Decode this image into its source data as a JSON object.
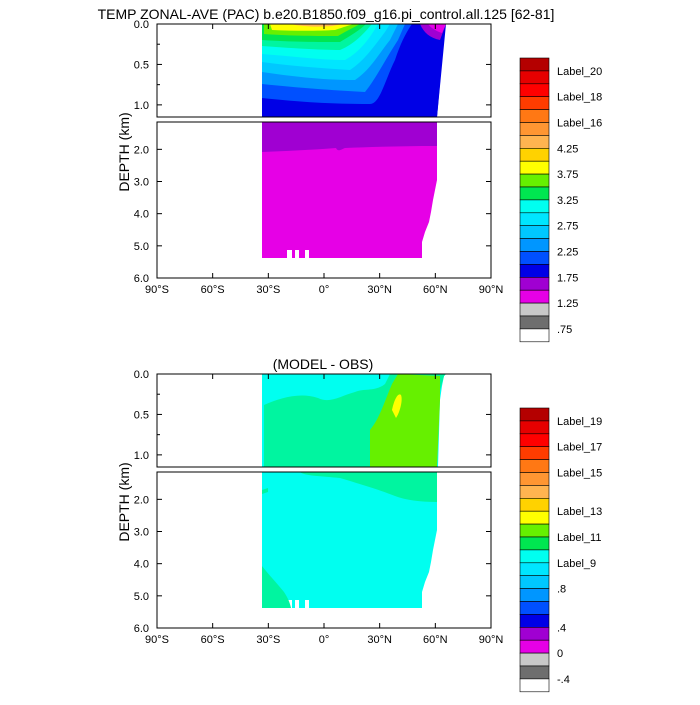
{
  "colors": {
    "palette": [
      "#ffffff",
      "#6e6e6e",
      "#c8c8c8",
      "#e600e6",
      "#a000d2",
      "#0000e6",
      "#0050ff",
      "#0096ff",
      "#00c8ff",
      "#00e6ff",
      "#00fff0",
      "#00f5a0",
      "#00e650",
      "#66f000",
      "#ffff00",
      "#ffd200",
      "#ffb450",
      "#ff9632",
      "#ff7814",
      "#ff3c00",
      "#ff0000",
      "#e60000",
      "#b40000"
    ],
    "frame": "#000000"
  },
  "chart_data": [
    {
      "type": "contour",
      "title": "TEMP ZONAL-AVE (PAC) b.e20.B1850.f09_g16.pi_control.all.125 [62-81]",
      "xlabel": "",
      "ylabel": "DEPTH (km)",
      "x_ticks": [
        "90°S",
        "60°S",
        "30°S",
        "0°",
        "30°N",
        "60°N",
        "90°N"
      ],
      "x_values": [
        -90,
        -60,
        -30,
        0,
        30,
        60,
        90
      ],
      "xlim": [
        -90,
        90
      ],
      "upper_depth_ticks": [
        "0.0",
        "0.5",
        "1.0"
      ],
      "lower_depth_ticks": [
        "2.0",
        "3.0",
        "4.0",
        "5.0",
        "6.0"
      ],
      "upper_ylim_km": [
        0,
        1.15
      ],
      "lower_ylim_km": [
        1.15,
        6.0
      ],
      "colorbar_labels": [
        "Label_20",
        "Label_18",
        "Label_16",
        "4.25",
        "3.75",
        "3.25",
        "2.75",
        "2.25",
        "1.75",
        "1.25",
        ".75"
      ],
      "colorbar_n": 22
    },
    {
      "type": "contour",
      "title": "(MODEL - OBS)",
      "xlabel": "",
      "ylabel": "DEPTH (km)",
      "x_ticks": [
        "90°S",
        "60°S",
        "30°S",
        "0°",
        "30°N",
        "60°N",
        "90°N"
      ],
      "x_values": [
        -90,
        -60,
        -30,
        0,
        30,
        60,
        90
      ],
      "xlim": [
        -90,
        90
      ],
      "upper_depth_ticks": [
        "0.0",
        "0.5",
        "1.0"
      ],
      "lower_depth_ticks": [
        "2.0",
        "3.0",
        "4.0",
        "5.0",
        "6.0"
      ],
      "upper_ylim_km": [
        0,
        1.15
      ],
      "lower_ylim_km": [
        1.15,
        6.0
      ],
      "colorbar_labels": [
        "Label_19",
        "Label_17",
        "Label_15",
        "Label_13",
        "Label_11",
        "Label_9",
        ".8",
        ".4",
        "0",
        "-.4"
      ],
      "colorbar_n": 22
    }
  ]
}
